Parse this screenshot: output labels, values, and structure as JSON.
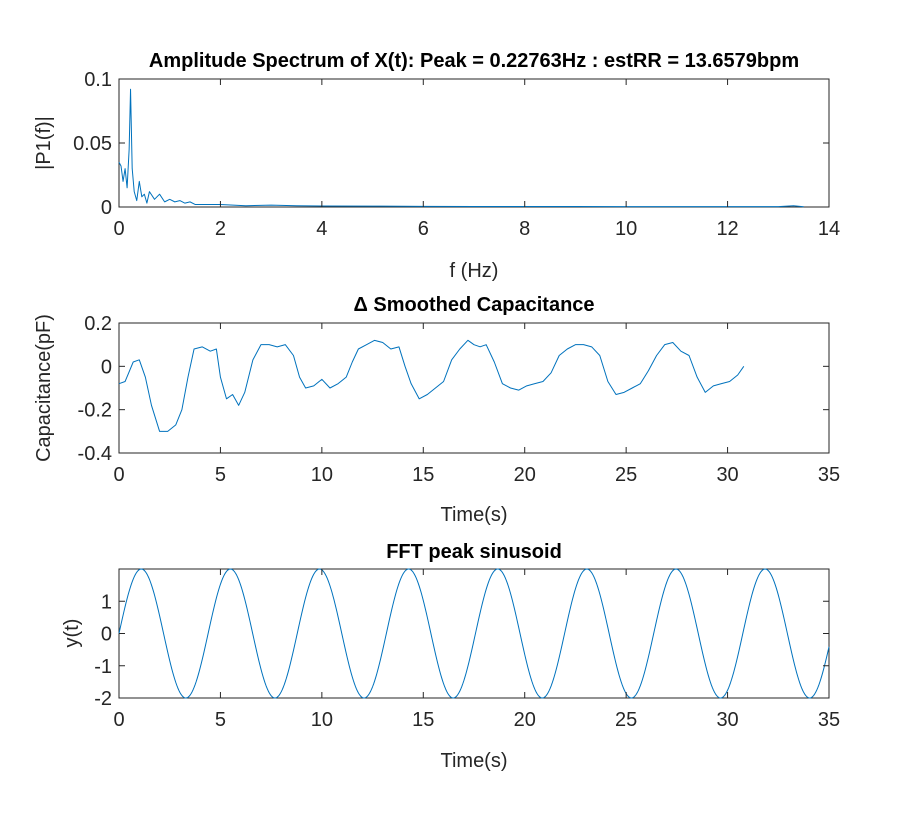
{
  "colors": {
    "line": "#0072BD",
    "axes": "#262626",
    "background": "#ffffff"
  },
  "chart_data": [
    {
      "type": "line",
      "title": "Amplitude Spectrum of X(t): Peak = 0.22763Hz : estRR = 13.6579bpm",
      "xlabel": "f (Hz)",
      "ylabel": "|P1(f)|",
      "xlim": [
        0,
        14
      ],
      "ylim": [
        0,
        0.1
      ],
      "xticks": [
        0,
        2,
        4,
        6,
        8,
        10,
        12,
        14
      ],
      "yticks": [
        0,
        0.05,
        0.1
      ],
      "xtick_labels": [
        "0",
        "2",
        "4",
        "6",
        "8",
        "10",
        "12",
        "14"
      ],
      "ytick_labels": [
        "0",
        "0.05",
        "0.1"
      ],
      "grid": false,
      "series": [
        {
          "x": [
            0,
            0.04,
            0.08,
            0.12,
            0.16,
            0.2,
            0.22763,
            0.26,
            0.3,
            0.35,
            0.4,
            0.45,
            0.5,
            0.55,
            0.6,
            0.7,
            0.8,
            0.9,
            1.0,
            1.1,
            1.2,
            1.3,
            1.4,
            1.5,
            1.7,
            2.0,
            2.5,
            3.0,
            3.5,
            4.0,
            5.0,
            6.0,
            7.0,
            8.0,
            9.0,
            10.0,
            11.0,
            12.0,
            13.0,
            13.3,
            13.5
          ],
          "y": [
            0.035,
            0.032,
            0.02,
            0.03,
            0.015,
            0.045,
            0.092,
            0.03,
            0.012,
            0.005,
            0.02,
            0.008,
            0.01,
            0.003,
            0.012,
            0.006,
            0.01,
            0.004,
            0.006,
            0.004,
            0.005,
            0.003,
            0.004,
            0.002,
            0.002,
            0.002,
            0.001,
            0.0015,
            0.001,
            0.0008,
            0.0007,
            0.0005,
            0.0004,
            0.0004,
            0.0004,
            0.0003,
            0.0003,
            0.0003,
            0.0003,
            0.001,
            0.0002
          ]
        }
      ]
    },
    {
      "type": "line",
      "title": "Δ Smoothed Capacitance",
      "xlabel": "Time(s)",
      "ylabel": "Capacitance(pF)",
      "xlim": [
        0,
        35
      ],
      "ylim": [
        -0.4,
        0.2
      ],
      "xticks": [
        0,
        5,
        10,
        15,
        20,
        25,
        30,
        35
      ],
      "yticks": [
        -0.4,
        -0.2,
        0,
        0.2
      ],
      "xtick_labels": [
        "0",
        "5",
        "10",
        "15",
        "20",
        "25",
        "30",
        "35"
      ],
      "ytick_labels": [
        "-0.4",
        "-0.2",
        "0",
        "0.2"
      ],
      "grid": false,
      "series": [
        {
          "x": [
            0,
            0.3,
            0.7,
            1.0,
            1.3,
            1.6,
            2.0,
            2.4,
            2.8,
            3.1,
            3.4,
            3.7,
            4.1,
            4.5,
            4.8,
            5.0,
            5.3,
            5.6,
            5.9,
            6.2,
            6.6,
            7.0,
            7.4,
            7.8,
            8.2,
            8.6,
            8.9,
            9.2,
            9.6,
            10.0,
            10.4,
            10.8,
            11.2,
            11.5,
            11.8,
            12.2,
            12.6,
            13.0,
            13.4,
            13.8,
            14.1,
            14.4,
            14.8,
            15.2,
            15.6,
            16.0,
            16.4,
            16.8,
            17.2,
            17.5,
            17.8,
            18.1,
            18.5,
            18.9,
            19.3,
            19.7,
            20.1,
            20.5,
            20.9,
            21.3,
            21.7,
            22.1,
            22.5,
            22.9,
            23.3,
            23.7,
            24.1,
            24.5,
            24.9,
            25.3,
            25.7,
            26.1,
            26.5,
            26.9,
            27.3,
            27.7,
            28.1,
            28.5,
            28.9,
            29.3,
            29.7,
            30.1,
            30.5,
            30.8
          ],
          "y": [
            -0.08,
            -0.07,
            0.02,
            0.03,
            -0.05,
            -0.18,
            -0.3,
            -0.3,
            -0.27,
            -0.2,
            -0.05,
            0.08,
            0.09,
            0.07,
            0.08,
            -0.05,
            -0.15,
            -0.13,
            -0.18,
            -0.12,
            0.03,
            0.1,
            0.1,
            0.09,
            0.1,
            0.05,
            -0.05,
            -0.1,
            -0.09,
            -0.06,
            -0.1,
            -0.08,
            -0.05,
            0.02,
            0.08,
            0.1,
            0.12,
            0.11,
            0.08,
            0.09,
            0.0,
            -0.08,
            -0.15,
            -0.13,
            -0.1,
            -0.07,
            0.03,
            0.08,
            0.12,
            0.1,
            0.09,
            0.1,
            0.02,
            -0.08,
            -0.1,
            -0.11,
            -0.09,
            -0.08,
            -0.07,
            -0.03,
            0.05,
            0.08,
            0.1,
            0.1,
            0.09,
            0.05,
            -0.07,
            -0.13,
            -0.12,
            -0.1,
            -0.08,
            -0.02,
            0.05,
            0.1,
            0.11,
            0.07,
            0.05,
            -0.05,
            -0.12,
            -0.09,
            -0.08,
            -0.07,
            -0.04,
            0.0
          ]
        }
      ]
    },
    {
      "type": "line",
      "title": "FFT peak sinusoid",
      "xlabel": "Time(s)",
      "ylabel": "y(t)",
      "xlim": [
        0,
        35
      ],
      "ylim": [
        -2,
        2
      ],
      "xticks": [
        0,
        5,
        10,
        15,
        20,
        25,
        30,
        35
      ],
      "yticks": [
        -2,
        -1,
        0,
        1
      ],
      "xtick_labels": [
        "0",
        "5",
        "10",
        "15",
        "20",
        "25",
        "30",
        "35"
      ],
      "ytick_labels": [
        "-2",
        "-1",
        "0",
        "1"
      ],
      "grid": false,
      "function": {
        "form": "A*sin(2*pi*f*t)",
        "A": 2,
        "f": 0.22763
      }
    }
  ]
}
